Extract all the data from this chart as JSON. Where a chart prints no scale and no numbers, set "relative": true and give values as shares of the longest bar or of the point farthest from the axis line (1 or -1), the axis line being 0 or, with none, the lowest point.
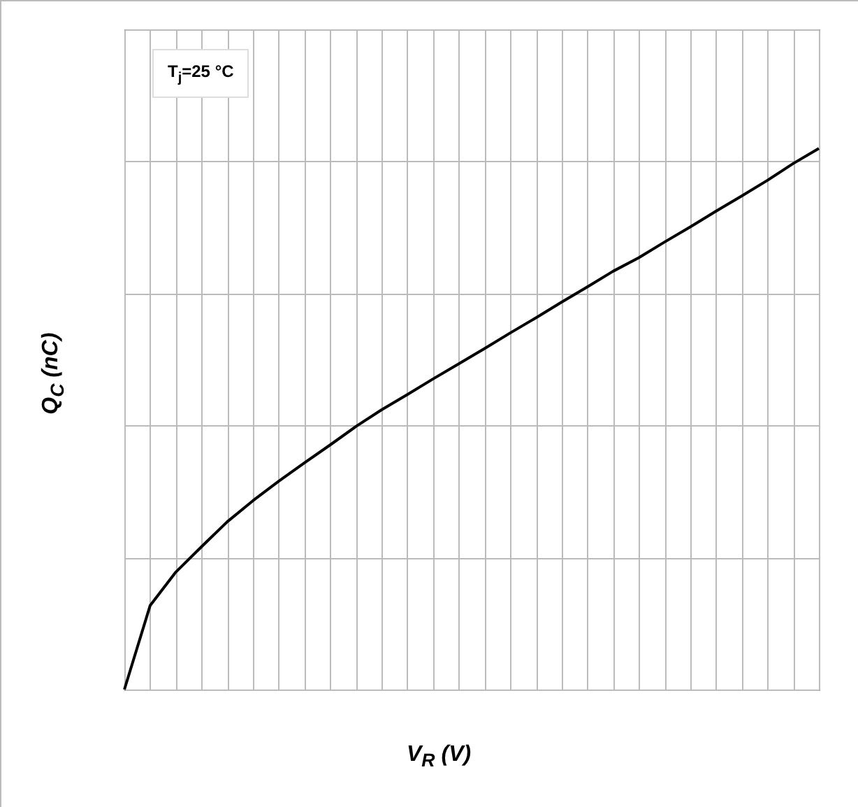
{
  "chart_data": {
    "type": "line",
    "relative": true,
    "xlabel": "V$_{R}$ (V)",
    "ylabel": "Q$_{C}$ (nC)",
    "annotations": [
      "T$_{j}$=25 °C"
    ],
    "grid": true,
    "tick_labels": false,
    "categories": [
      null,
      null,
      null,
      null,
      null,
      null,
      null,
      null,
      null,
      null,
      null,
      null,
      null,
      null,
      null,
      null,
      null,
      null,
      null,
      null,
      null,
      null,
      null,
      null,
      null,
      null,
      null,
      null
    ],
    "series": [
      {
        "color": "#000000",
        "values": [
          0,
          0.155,
          0.217,
          0.264,
          0.31,
          0.349,
          0.385,
          0.419,
          0.452,
          0.486,
          0.517,
          0.545,
          0.574,
          0.602,
          0.63,
          0.659,
          0.687,
          0.716,
          0.744,
          0.773,
          0.798,
          0.827,
          0.855,
          0.884,
          0.912,
          0.941,
          0.972,
          1.0
        ]
      }
    ]
  }
}
